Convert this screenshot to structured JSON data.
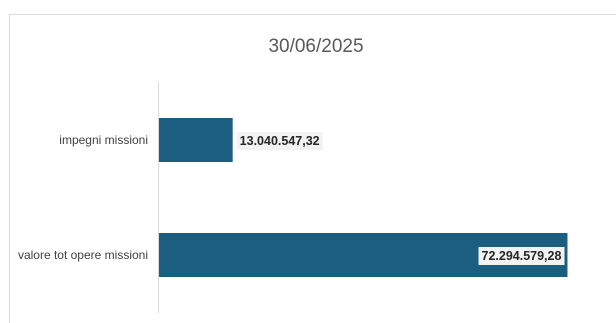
{
  "chart_data": {
    "type": "bar",
    "orientation": "horizontal",
    "title": "30/06/2025",
    "categories": [
      "impegni missioni",
      "valore tot opere missioni"
    ],
    "values": [
      13040547.32,
      72294579.28
    ],
    "data_labels": [
      "13.040.547,32",
      "72.294.579,28"
    ],
    "xlim": [
      0,
      80000000
    ],
    "grid": false,
    "legend": "none",
    "colors": {
      "bar": "#1B5E80",
      "axis": "#d9d9d9",
      "label_bg": "#f2f2f2"
    }
  }
}
